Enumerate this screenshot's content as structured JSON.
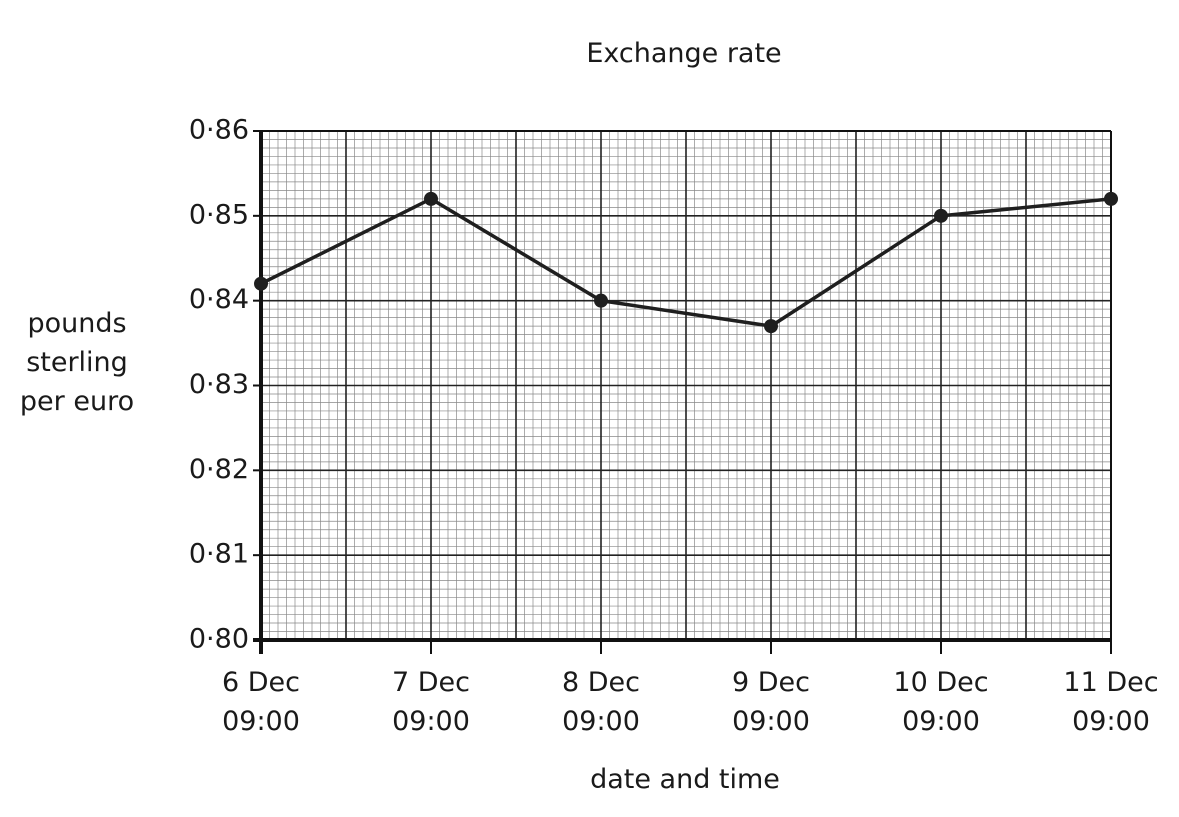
{
  "chart_data": {
    "type": "line",
    "title": "Exchange rate",
    "x_label": "date and time",
    "y_label": "pounds\nsterling\nper euro",
    "categories": [
      "6 Dec\n09:00",
      "7 Dec\n09:00",
      "8 Dec\n09:00",
      "9 Dec\n09:00",
      "10 Dec\n09:00",
      "11 Dec\n09:00"
    ],
    "series": [
      {
        "values": [
          0.842,
          0.852,
          0.84,
          0.837,
          0.85,
          0.852
        ],
        "color": "#1f1f1f"
      }
    ],
    "ylim": [
      0.8,
      0.86
    ],
    "yticks": [
      {
        "value": 0.8,
        "label": "0·80"
      },
      {
        "value": 0.81,
        "label": "0·81"
      },
      {
        "value": 0.82,
        "label": "0·82"
      },
      {
        "value": 0.83,
        "label": "0·83"
      },
      {
        "value": 0.84,
        "label": "0·84"
      },
      {
        "value": 0.85,
        "label": "0·85"
      },
      {
        "value": 0.86,
        "label": "0·86"
      }
    ],
    "grid": true
  }
}
